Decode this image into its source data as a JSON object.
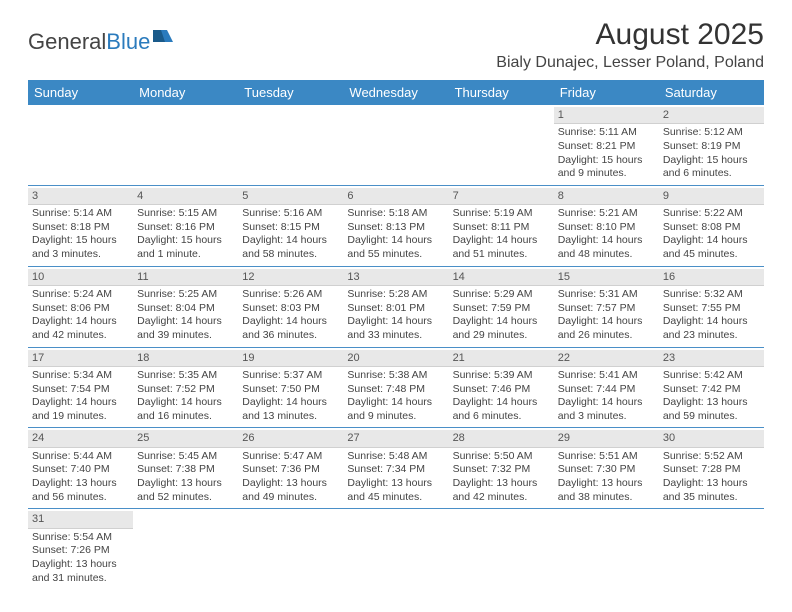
{
  "logo": {
    "part1": "General",
    "part2": "Blue"
  },
  "title": "August 2025",
  "location": "Bialy Dunajec, Lesser Poland, Poland",
  "day_headers": [
    "Sunday",
    "Monday",
    "Tuesday",
    "Wednesday",
    "Thursday",
    "Friday",
    "Saturday"
  ],
  "header_bg": "#3b88c4",
  "weeks": [
    [
      {
        "empty": true
      },
      {
        "empty": true
      },
      {
        "empty": true
      },
      {
        "empty": true
      },
      {
        "empty": true
      },
      {
        "n": "1",
        "sr": "Sunrise: 5:11 AM",
        "ss": "Sunset: 8:21 PM",
        "dl1": "Daylight: 15 hours",
        "dl2": "and 9 minutes."
      },
      {
        "n": "2",
        "sr": "Sunrise: 5:12 AM",
        "ss": "Sunset: 8:19 PM",
        "dl1": "Daylight: 15 hours",
        "dl2": "and 6 minutes."
      }
    ],
    [
      {
        "n": "3",
        "sr": "Sunrise: 5:14 AM",
        "ss": "Sunset: 8:18 PM",
        "dl1": "Daylight: 15 hours",
        "dl2": "and 3 minutes."
      },
      {
        "n": "4",
        "sr": "Sunrise: 5:15 AM",
        "ss": "Sunset: 8:16 PM",
        "dl1": "Daylight: 15 hours",
        "dl2": "and 1 minute."
      },
      {
        "n": "5",
        "sr": "Sunrise: 5:16 AM",
        "ss": "Sunset: 8:15 PM",
        "dl1": "Daylight: 14 hours",
        "dl2": "and 58 minutes."
      },
      {
        "n": "6",
        "sr": "Sunrise: 5:18 AM",
        "ss": "Sunset: 8:13 PM",
        "dl1": "Daylight: 14 hours",
        "dl2": "and 55 minutes."
      },
      {
        "n": "7",
        "sr": "Sunrise: 5:19 AM",
        "ss": "Sunset: 8:11 PM",
        "dl1": "Daylight: 14 hours",
        "dl2": "and 51 minutes."
      },
      {
        "n": "8",
        "sr": "Sunrise: 5:21 AM",
        "ss": "Sunset: 8:10 PM",
        "dl1": "Daylight: 14 hours",
        "dl2": "and 48 minutes."
      },
      {
        "n": "9",
        "sr": "Sunrise: 5:22 AM",
        "ss": "Sunset: 8:08 PM",
        "dl1": "Daylight: 14 hours",
        "dl2": "and 45 minutes."
      }
    ],
    [
      {
        "n": "10",
        "sr": "Sunrise: 5:24 AM",
        "ss": "Sunset: 8:06 PM",
        "dl1": "Daylight: 14 hours",
        "dl2": "and 42 minutes."
      },
      {
        "n": "11",
        "sr": "Sunrise: 5:25 AM",
        "ss": "Sunset: 8:04 PM",
        "dl1": "Daylight: 14 hours",
        "dl2": "and 39 minutes."
      },
      {
        "n": "12",
        "sr": "Sunrise: 5:26 AM",
        "ss": "Sunset: 8:03 PM",
        "dl1": "Daylight: 14 hours",
        "dl2": "and 36 minutes."
      },
      {
        "n": "13",
        "sr": "Sunrise: 5:28 AM",
        "ss": "Sunset: 8:01 PM",
        "dl1": "Daylight: 14 hours",
        "dl2": "and 33 minutes."
      },
      {
        "n": "14",
        "sr": "Sunrise: 5:29 AM",
        "ss": "Sunset: 7:59 PM",
        "dl1": "Daylight: 14 hours",
        "dl2": "and 29 minutes."
      },
      {
        "n": "15",
        "sr": "Sunrise: 5:31 AM",
        "ss": "Sunset: 7:57 PM",
        "dl1": "Daylight: 14 hours",
        "dl2": "and 26 minutes."
      },
      {
        "n": "16",
        "sr": "Sunrise: 5:32 AM",
        "ss": "Sunset: 7:55 PM",
        "dl1": "Daylight: 14 hours",
        "dl2": "and 23 minutes."
      }
    ],
    [
      {
        "n": "17",
        "sr": "Sunrise: 5:34 AM",
        "ss": "Sunset: 7:54 PM",
        "dl1": "Daylight: 14 hours",
        "dl2": "and 19 minutes."
      },
      {
        "n": "18",
        "sr": "Sunrise: 5:35 AM",
        "ss": "Sunset: 7:52 PM",
        "dl1": "Daylight: 14 hours",
        "dl2": "and 16 minutes."
      },
      {
        "n": "19",
        "sr": "Sunrise: 5:37 AM",
        "ss": "Sunset: 7:50 PM",
        "dl1": "Daylight: 14 hours",
        "dl2": "and 13 minutes."
      },
      {
        "n": "20",
        "sr": "Sunrise: 5:38 AM",
        "ss": "Sunset: 7:48 PM",
        "dl1": "Daylight: 14 hours",
        "dl2": "and 9 minutes."
      },
      {
        "n": "21",
        "sr": "Sunrise: 5:39 AM",
        "ss": "Sunset: 7:46 PM",
        "dl1": "Daylight: 14 hours",
        "dl2": "and 6 minutes."
      },
      {
        "n": "22",
        "sr": "Sunrise: 5:41 AM",
        "ss": "Sunset: 7:44 PM",
        "dl1": "Daylight: 14 hours",
        "dl2": "and 3 minutes."
      },
      {
        "n": "23",
        "sr": "Sunrise: 5:42 AM",
        "ss": "Sunset: 7:42 PM",
        "dl1": "Daylight: 13 hours",
        "dl2": "and 59 minutes."
      }
    ],
    [
      {
        "n": "24",
        "sr": "Sunrise: 5:44 AM",
        "ss": "Sunset: 7:40 PM",
        "dl1": "Daylight: 13 hours",
        "dl2": "and 56 minutes."
      },
      {
        "n": "25",
        "sr": "Sunrise: 5:45 AM",
        "ss": "Sunset: 7:38 PM",
        "dl1": "Daylight: 13 hours",
        "dl2": "and 52 minutes."
      },
      {
        "n": "26",
        "sr": "Sunrise: 5:47 AM",
        "ss": "Sunset: 7:36 PM",
        "dl1": "Daylight: 13 hours",
        "dl2": "and 49 minutes."
      },
      {
        "n": "27",
        "sr": "Sunrise: 5:48 AM",
        "ss": "Sunset: 7:34 PM",
        "dl1": "Daylight: 13 hours",
        "dl2": "and 45 minutes."
      },
      {
        "n": "28",
        "sr": "Sunrise: 5:50 AM",
        "ss": "Sunset: 7:32 PM",
        "dl1": "Daylight: 13 hours",
        "dl2": "and 42 minutes."
      },
      {
        "n": "29",
        "sr": "Sunrise: 5:51 AM",
        "ss": "Sunset: 7:30 PM",
        "dl1": "Daylight: 13 hours",
        "dl2": "and 38 minutes."
      },
      {
        "n": "30",
        "sr": "Sunrise: 5:52 AM",
        "ss": "Sunset: 7:28 PM",
        "dl1": "Daylight: 13 hours",
        "dl2": "and 35 minutes."
      }
    ],
    [
      {
        "n": "31",
        "sr": "Sunrise: 5:54 AM",
        "ss": "Sunset: 7:26 PM",
        "dl1": "Daylight: 13 hours",
        "dl2": "and 31 minutes."
      },
      {
        "empty": true
      },
      {
        "empty": true
      },
      {
        "empty": true
      },
      {
        "empty": true
      },
      {
        "empty": true
      },
      {
        "empty": true
      }
    ]
  ]
}
